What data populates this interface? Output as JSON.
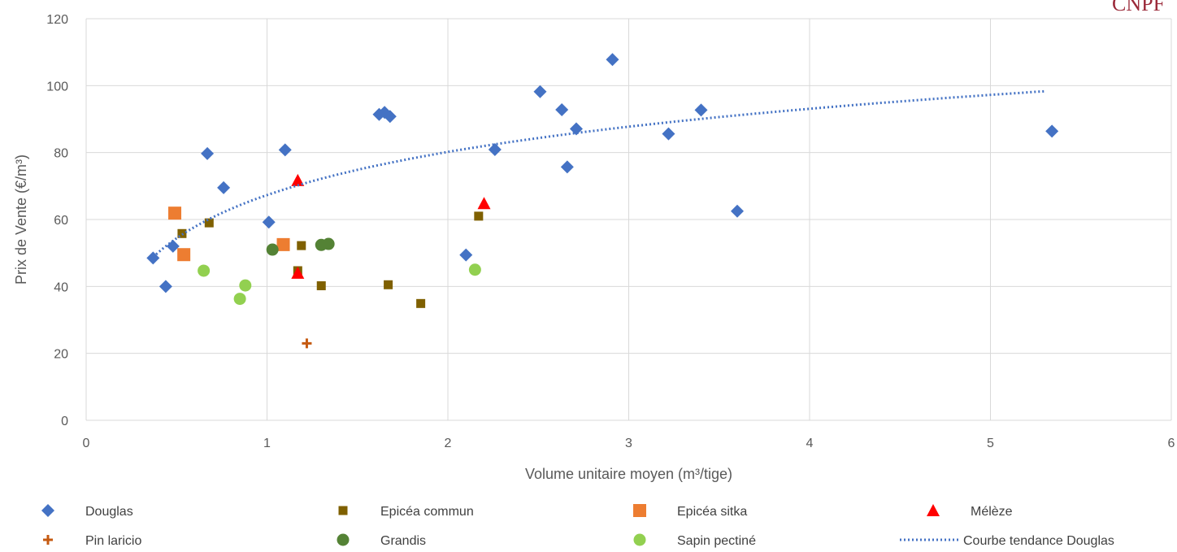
{
  "logo_text": "CNPF",
  "chart_data": {
    "type": "scatter",
    "title": "",
    "xlabel": "Volume unitaire moyen (m³/tige)",
    "ylabel": "Prix de Vente (€/m³)",
    "xlim": [
      0,
      6
    ],
    "ylim": [
      0,
      120
    ],
    "x_ticks": [
      0,
      1,
      2,
      3,
      4,
      5,
      6
    ],
    "y_ticks": [
      0,
      20,
      40,
      60,
      80,
      100,
      120
    ],
    "grid": true,
    "legend_position": "bottom",
    "series": [
      {
        "name": "Douglas",
        "marker": "diamond",
        "color": "#4472c4",
        "points": [
          [
            0.37,
            48.5
          ],
          [
            0.44,
            40
          ],
          [
            0.48,
            52
          ],
          [
            0.67,
            79.7
          ],
          [
            0.76,
            69.5
          ],
          [
            1.01,
            59.2
          ],
          [
            1.1,
            80.8
          ],
          [
            1.62,
            91.4
          ],
          [
            1.65,
            92
          ],
          [
            1.68,
            90.8
          ],
          [
            2.1,
            49.4
          ],
          [
            2.26,
            80.9
          ],
          [
            2.51,
            98.2
          ],
          [
            2.63,
            92.8
          ],
          [
            2.66,
            75.7
          ],
          [
            2.71,
            87.1
          ],
          [
            2.91,
            107.8
          ],
          [
            3.22,
            85.6
          ],
          [
            3.4,
            92.7
          ],
          [
            3.6,
            62.5
          ],
          [
            5.34,
            86.4
          ]
        ]
      },
      {
        "name": "Epicéa commun",
        "marker": "square-small",
        "color": "#7f6000",
        "points": [
          [
            0.53,
            55.8
          ],
          [
            0.68,
            59
          ],
          [
            1.17,
            44.7
          ],
          [
            1.19,
            52.2
          ],
          [
            1.3,
            40.2
          ],
          [
            1.67,
            40.5
          ],
          [
            1.85,
            34.9
          ],
          [
            2.17,
            61
          ]
        ]
      },
      {
        "name": "Epicéa sitka",
        "marker": "square",
        "color": "#ed7d31",
        "points": [
          [
            0.49,
            61.9
          ],
          [
            0.54,
            49.5
          ],
          [
            1.09,
            52.5
          ]
        ]
      },
      {
        "name": "Mélèze",
        "marker": "triangle",
        "color": "#ff0000",
        "points": [
          [
            1.17,
            71.7
          ],
          [
            1.17,
            44
          ],
          [
            2.2,
            64.8
          ]
        ]
      },
      {
        "name": "Pin laricio",
        "marker": "plus",
        "color": "#c55a11",
        "points": [
          [
            1.22,
            23
          ]
        ]
      },
      {
        "name": "Grandis",
        "marker": "circle",
        "color": "#548235",
        "points": [
          [
            1.03,
            51
          ],
          [
            1.3,
            52.4
          ],
          [
            1.34,
            52.7
          ]
        ]
      },
      {
        "name": "Sapin pectiné",
        "marker": "circle",
        "color": "#92d050",
        "points": [
          [
            0.65,
            44.7
          ],
          [
            0.85,
            36.3
          ],
          [
            0.88,
            40.3
          ],
          [
            2.15,
            45
          ]
        ]
      },
      {
        "name": "Courbe tendance Douglas",
        "marker": "dotted-line",
        "color": "#4472c4",
        "trend": {
          "form": "logarithmic",
          "a": 67.3,
          "b": 18.6,
          "x_from": 0.37,
          "x_to": 5.3
        }
      }
    ]
  }
}
